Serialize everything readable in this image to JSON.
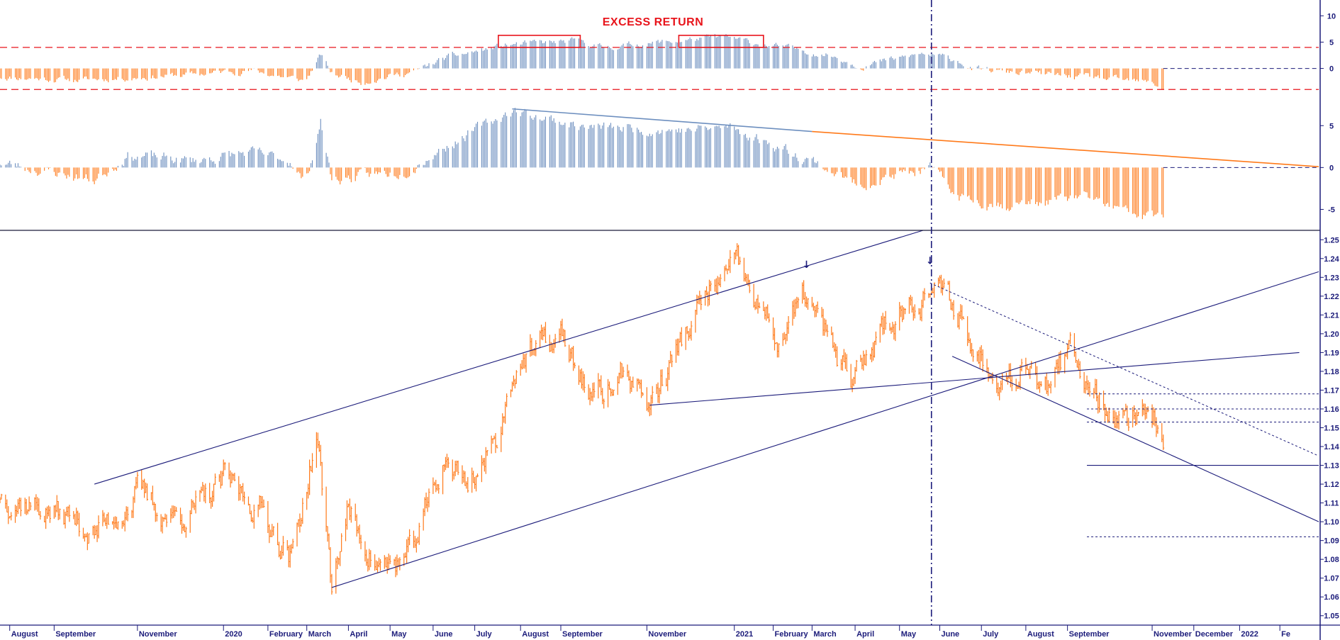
{
  "colors": {
    "price": "#ff7a1a",
    "positive": "#6d8fbf",
    "negative": "#ff7a1a",
    "trendline": "#1b1b7a",
    "axis_text": "#1b1b7a",
    "title": "#e8141b",
    "band": "#e8141b"
  },
  "chart_data": [
    {
      "type": "bar",
      "title": "EXCESS RETURN",
      "ylim": [
        -4.5,
        13
      ],
      "yticks": [
        10,
        5,
        0
      ],
      "threshold_lines": [
        4,
        -4
      ],
      "series": [
        {
          "values": []
        }
      ],
      "profile": [
        {
          "date": "2019-07-25",
          "value": -1.6
        },
        {
          "date": "2019-09-20",
          "value": -2.2
        },
        {
          "date": "2019-12-10",
          "value": -1.2
        },
        {
          "date": "2020-01-20",
          "value": -0.3
        },
        {
          "date": "2020-03-01",
          "value": -2.4
        },
        {
          "date": "2020-03-12",
          "value": 2.5
        },
        {
          "date": "2020-03-20",
          "value": -1.0
        },
        {
          "date": "2020-04-10",
          "value": -2.5
        },
        {
          "date": "2020-05-20",
          "value": -0.5
        },
        {
          "date": "2020-06-10",
          "value": 2.0
        },
        {
          "date": "2020-07-25",
          "value": 4.5
        },
        {
          "date": "2020-09-15",
          "value": 5.2
        },
        {
          "date": "2020-10-01",
          "value": 4.0
        },
        {
          "date": "2020-12-05",
          "value": 5.5
        },
        {
          "date": "2020-12-28",
          "value": 6.0
        },
        {
          "date": "2021-01-15",
          "value": 5.0
        },
        {
          "date": "2021-03-15",
          "value": 2.5
        },
        {
          "date": "2021-04-05",
          "value": 0.5
        },
        {
          "date": "2021-05-20",
          "value": 2.8
        },
        {
          "date": "2021-06-15",
          "value": 1.5
        },
        {
          "date": "2021-06-25",
          "value": -0.2
        },
        {
          "date": "2021-09-20",
          "value": -1.8
        },
        {
          "date": "2021-11-01",
          "value": -2.8
        },
        {
          "date": "2021-11-09",
          "value": -3.8
        }
      ],
      "highlight_boxes": [
        {
          "from": "2020-07-18",
          "to": "2020-09-15"
        },
        {
          "from": "2020-11-25",
          "to": "2021-01-25"
        }
      ]
    },
    {
      "type": "bar",
      "ylim": [
        -7.5,
        9
      ],
      "yticks": [
        5,
        0,
        -5
      ],
      "series": [
        {
          "values": []
        }
      ],
      "profile": [
        {
          "date": "2019-07-25",
          "value": 0.6
        },
        {
          "date": "2019-10-01",
          "value": -1.5
        },
        {
          "date": "2019-10-25",
          "value": 1.5
        },
        {
          "date": "2019-12-10",
          "value": 0.8
        },
        {
          "date": "2020-01-20",
          "value": 1.8
        },
        {
          "date": "2020-02-20",
          "value": 0.8
        },
        {
          "date": "2020-03-01",
          "value": -2.0
        },
        {
          "date": "2020-03-12",
          "value": 5.5
        },
        {
          "date": "2020-03-20",
          "value": -1.5
        },
        {
          "date": "2020-05-10",
          "value": -0.5
        },
        {
          "date": "2020-06-15",
          "value": 3.0
        },
        {
          "date": "2020-07-28",
          "value": 6.8
        },
        {
          "date": "2020-09-20",
          "value": 4.8
        },
        {
          "date": "2020-12-01",
          "value": 4.5
        },
        {
          "date": "2021-01-01",
          "value": 4.8
        },
        {
          "date": "2021-02-28",
          "value": 1.0
        },
        {
          "date": "2021-04-01",
          "value": -2.0
        },
        {
          "date": "2021-05-25",
          "value": -0.2
        },
        {
          "date": "2021-06-15",
          "value": -3.5
        },
        {
          "date": "2021-07-20",
          "value": -4.5
        },
        {
          "date": "2021-09-15",
          "value": -3.5
        },
        {
          "date": "2021-10-15",
          "value": -5.5
        },
        {
          "date": "2021-11-09",
          "value": -6.0
        }
      ],
      "trendlines": [
        {
          "from": [
            "2020-07-28",
            7.0
          ],
          "to": [
            "2021-03-01",
            4.3
          ],
          "color": "positive"
        },
        {
          "from": [
            "2021-03-01",
            4.3
          ],
          "to": [
            "2022-03-01",
            0.1
          ],
          "color": "negative"
        }
      ],
      "reference_lines": [
        {
          "from": "2021-11-09",
          "to": "2022-03-01",
          "value": 0,
          "style": "dashed"
        }
      ]
    },
    {
      "type": "line",
      "ylim": [
        1.045,
        1.255
      ],
      "yticks": [
        1.25,
        1.24,
        1.23,
        1.22,
        1.21,
        1.2,
        1.19,
        1.18,
        1.17,
        1.16,
        1.15,
        1.14,
        1.13,
        1.12,
        1.11,
        1.1,
        1.09,
        1.08,
        1.07,
        1.06,
        1.05
      ],
      "series": [
        {
          "values": []
        }
      ],
      "profile": [
        {
          "date": "2019-07-25",
          "value": 1.115
        },
        {
          "date": "2019-08-15",
          "value": 1.11
        },
        {
          "date": "2019-09-05",
          "value": 1.104
        },
        {
          "date": "2019-09-20",
          "value": 1.1
        },
        {
          "date": "2019-10-01",
          "value": 1.093
        },
        {
          "date": "2019-10-15",
          "value": 1.103
        },
        {
          "date": "2019-11-01",
          "value": 1.115
        },
        {
          "date": "2019-11-25",
          "value": 1.102
        },
        {
          "date": "2019-12-20",
          "value": 1.11
        },
        {
          "date": "2020-01-03",
          "value": 1.122
        },
        {
          "date": "2020-01-31",
          "value": 1.105
        },
        {
          "date": "2020-02-20",
          "value": 1.08
        },
        {
          "date": "2020-03-09",
          "value": 1.146
        },
        {
          "date": "2020-03-20",
          "value": 1.067
        },
        {
          "date": "2020-03-31",
          "value": 1.105
        },
        {
          "date": "2020-04-24",
          "value": 1.075
        },
        {
          "date": "2020-05-15",
          "value": 1.08
        },
        {
          "date": "2020-06-10",
          "value": 1.135
        },
        {
          "date": "2020-06-25",
          "value": 1.12
        },
        {
          "date": "2020-07-15",
          "value": 1.14
        },
        {
          "date": "2020-07-31",
          "value": 1.185
        },
        {
          "date": "2020-09-01",
          "value": 1.198
        },
        {
          "date": "2020-09-25",
          "value": 1.164
        },
        {
          "date": "2020-10-20",
          "value": 1.18
        },
        {
          "date": "2020-11-04",
          "value": 1.162
        },
        {
          "date": "2020-11-30",
          "value": 1.2
        },
        {
          "date": "2020-12-20",
          "value": 1.225
        },
        {
          "date": "2021-01-06",
          "value": 1.234
        },
        {
          "date": "2021-01-20",
          "value": 1.215
        },
        {
          "date": "2021-02-05",
          "value": 1.196
        },
        {
          "date": "2021-02-25",
          "value": 1.22
        },
        {
          "date": "2021-03-15",
          "value": 1.192
        },
        {
          "date": "2021-03-31",
          "value": 1.172
        },
        {
          "date": "2021-04-20",
          "value": 1.205
        },
        {
          "date": "2021-05-25",
          "value": 1.225
        },
        {
          "date": "2021-06-15",
          "value": 1.212
        },
        {
          "date": "2021-06-25",
          "value": 1.19
        },
        {
          "date": "2021-07-20",
          "value": 1.178
        },
        {
          "date": "2021-08-05",
          "value": 1.188
        },
        {
          "date": "2021-08-20",
          "value": 1.17
        },
        {
          "date": "2021-09-03",
          "value": 1.188
        },
        {
          "date": "2021-09-20",
          "value": 1.172
        },
        {
          "date": "2021-10-12",
          "value": 1.153
        },
        {
          "date": "2021-10-25",
          "value": 1.162
        },
        {
          "date": "2021-11-04",
          "value": 1.155
        },
        {
          "date": "2021-11-09",
          "value": 1.146
        }
      ],
      "trendlines": [
        {
          "from": [
            "2019-10-01",
            1.12
          ],
          "to": [
            "2021-05-20",
            1.255
          ],
          "style": "solid"
        },
        {
          "from": [
            "2020-03-20",
            1.065
          ],
          "to": [
            "2022-03-01",
            1.233
          ],
          "style": "solid"
        },
        {
          "from": [
            "2020-11-04",
            1.162
          ],
          "to": [
            "2022-02-15",
            1.19
          ],
          "style": "solid"
        },
        {
          "from": [
            "2021-06-10",
            1.188
          ],
          "to": [
            "2022-03-01",
            1.1
          ],
          "style": "solid"
        },
        {
          "from": [
            "2021-05-25",
            1.227
          ],
          "to": [
            "2022-03-01",
            1.135
          ],
          "style": "dotted"
        },
        {
          "from": [
            "2021-09-15",
            1.13
          ],
          "to": [
            "2022-03-01",
            1.13
          ],
          "style": "solid"
        },
        {
          "from": [
            "2021-09-15",
            1.168
          ],
          "to": [
            "2022-03-01",
            1.168
          ],
          "style": "dotted"
        },
        {
          "from": [
            "2021-09-15",
            1.16
          ],
          "to": [
            "2022-03-01",
            1.16
          ],
          "style": "dotted"
        },
        {
          "from": [
            "2021-09-15",
            1.153
          ],
          "to": [
            "2022-03-01",
            1.153
          ],
          "style": "dotted"
        },
        {
          "from": [
            "2021-09-15",
            1.092
          ],
          "to": [
            "2022-03-01",
            1.092
          ],
          "style": "dotted"
        }
      ],
      "markers": [
        {
          "date": "2021-02-25",
          "value": 1.235,
          "glyph": "↓"
        },
        {
          "date": "2021-05-25",
          "value": 1.237,
          "glyph": "↓"
        }
      ],
      "vertical_marker": {
        "date": "2021-05-26"
      }
    }
  ],
  "x_axis": {
    "start": "2019-07-25",
    "end": "2022-03-01",
    "labels": [
      {
        "date": "2019-08-01",
        "label": "August"
      },
      {
        "date": "2019-09-02",
        "label": "September"
      },
      {
        "date": "2019-11-01",
        "label": "November"
      },
      {
        "date": "2020-01-02",
        "label": "2020"
      },
      {
        "date": "2020-02-03",
        "label": "February"
      },
      {
        "date": "2020-03-02",
        "label": "March"
      },
      {
        "date": "2020-04-01",
        "label": "April"
      },
      {
        "date": "2020-05-01",
        "label": "May"
      },
      {
        "date": "2020-06-01",
        "label": "June"
      },
      {
        "date": "2020-07-01",
        "label": "July"
      },
      {
        "date": "2020-08-03",
        "label": "August"
      },
      {
        "date": "2020-09-01",
        "label": "September"
      },
      {
        "date": "2020-11-02",
        "label": "November"
      },
      {
        "date": "2021-01-04",
        "label": "2021"
      },
      {
        "date": "2021-02-01",
        "label": "February"
      },
      {
        "date": "2021-03-01",
        "label": "March"
      },
      {
        "date": "2021-04-01",
        "label": "April"
      },
      {
        "date": "2021-05-03",
        "label": "May"
      },
      {
        "date": "2021-06-01",
        "label": "June"
      },
      {
        "date": "2021-07-01",
        "label": "July"
      },
      {
        "date": "2021-08-02",
        "label": "August"
      },
      {
        "date": "2021-09-01",
        "label": "September"
      },
      {
        "date": "2021-11-01",
        "label": "November"
      },
      {
        "date": "2021-12-01",
        "label": "December"
      },
      {
        "date": "2022-01-03",
        "label": "2022"
      },
      {
        "date": "2022-02-01",
        "label": "Fe"
      }
    ]
  }
}
